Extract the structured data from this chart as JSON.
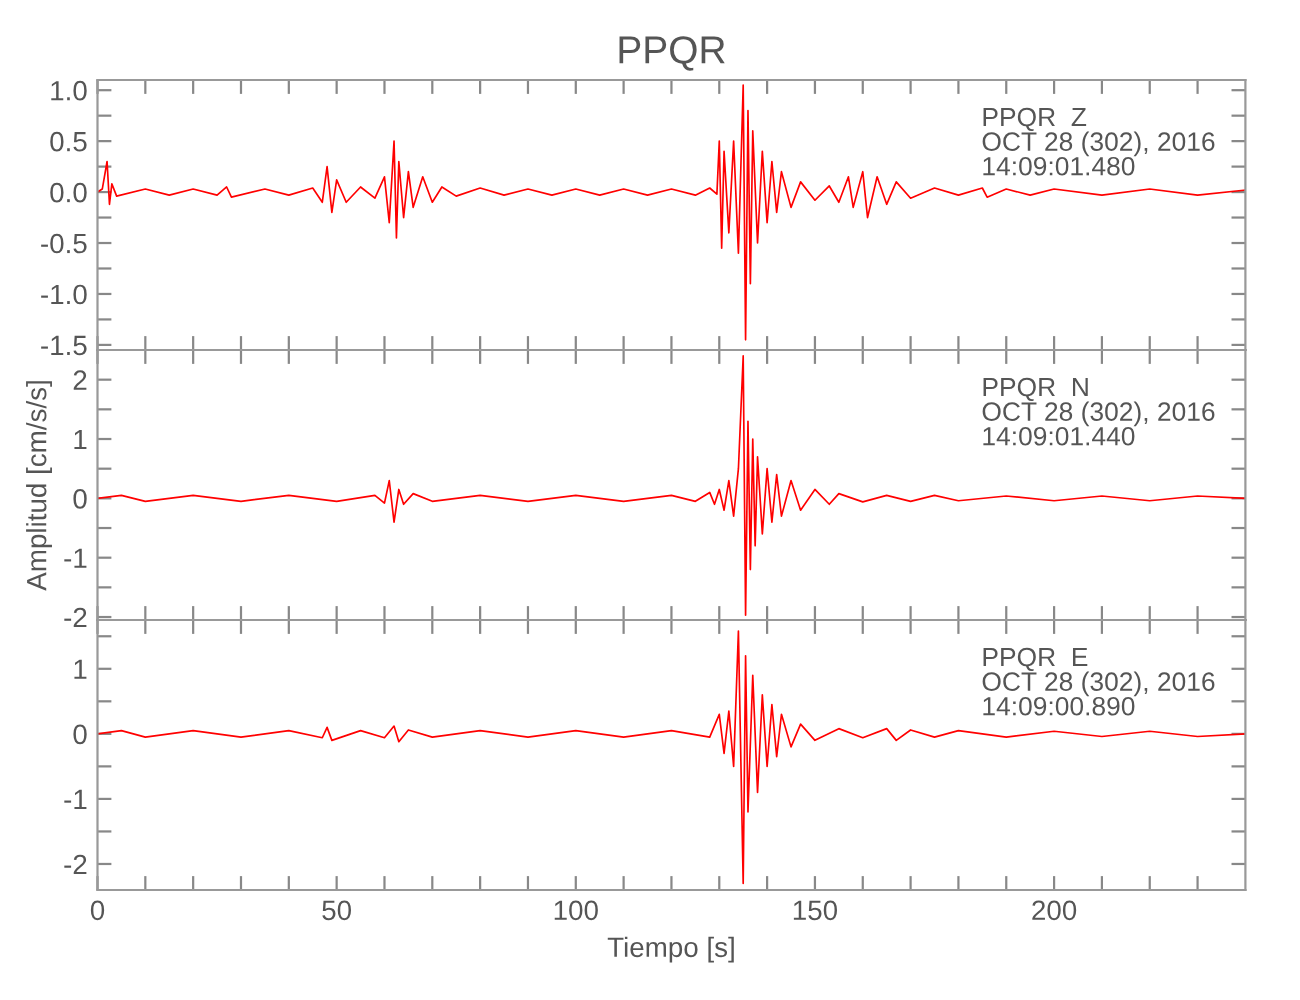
{
  "chart_data": [
    {
      "type": "line",
      "title": "PPQR",
      "annotations": [
        "PPQR  Z\nOCT 28 (302), 2016\n14:09:01.480"
      ],
      "x": [
        0,
        1,
        2,
        2.5,
        3,
        4,
        10,
        15,
        20,
        25,
        27,
        28,
        35,
        40,
        45,
        47,
        48,
        49,
        50,
        52,
        55,
        58,
        60,
        61,
        62,
        62.5,
        63,
        64,
        65,
        66,
        68,
        70,
        72,
        75,
        80,
        85,
        90,
        95,
        100,
        105,
        110,
        115,
        120,
        125,
        128,
        129.5,
        130,
        130.5,
        131,
        132,
        133,
        134,
        135,
        135.5,
        136,
        136.5,
        137,
        138,
        139,
        140,
        141,
        142,
        143,
        145,
        147,
        150,
        153,
        155,
        157,
        158,
        160,
        161,
        163,
        165,
        167,
        170,
        175,
        180,
        185,
        186,
        190,
        195,
        200,
        210,
        220,
        230,
        240
      ],
      "series": [
        {
          "color": "#ff0000",
          "values": [
            0,
            0.03,
            0.3,
            -0.12,
            0.08,
            -0.04,
            0.03,
            -0.03,
            0.03,
            -0.03,
            0.05,
            -0.05,
            0.03,
            -0.03,
            0.04,
            -0.1,
            0.25,
            -0.2,
            0.12,
            -0.1,
            0.05,
            -0.06,
            0.15,
            -0.3,
            0.5,
            -0.45,
            0.3,
            -0.25,
            0.2,
            -0.15,
            0.15,
            -0.1,
            0.05,
            -0.04,
            0.04,
            -0.03,
            0.03,
            -0.03,
            0.03,
            -0.03,
            0.03,
            -0.03,
            0.03,
            -0.03,
            0.04,
            -0.02,
            0.5,
            -0.55,
            0.4,
            -0.4,
            0.5,
            -0.6,
            1.05,
            -1.45,
            0.8,
            -0.9,
            0.6,
            -0.5,
            0.4,
            -0.3,
            0.3,
            -0.2,
            0.2,
            -0.15,
            0.1,
            -0.08,
            0.06,
            -0.1,
            0.15,
            -0.15,
            0.2,
            -0.25,
            0.15,
            -0.12,
            0.1,
            -0.06,
            0.04,
            -0.03,
            0.04,
            -0.05,
            0.03,
            -0.03,
            0.03,
            -0.03,
            0.03,
            -0.03,
            0.02
          ]
        }
      ],
      "xlim": [
        0,
        240
      ],
      "ylim": [
        -1.55,
        1.1
      ],
      "xticks": [
        0,
        {
          "value": 10,
          "label": null
        },
        {
          "value": 20,
          "label": null
        },
        {
          "value": 30,
          "label": null
        },
        {
          "value": 40,
          "label": null
        },
        50,
        {
          "value": 60,
          "label": null
        },
        {
          "value": 70,
          "label": null
        },
        {
          "value": 80,
          "label": null
        },
        {
          "value": 90,
          "label": null
        },
        100,
        {
          "value": 110,
          "label": null
        },
        {
          "value": 120,
          "label": null
        },
        {
          "value": 130,
          "label": null
        },
        {
          "value": 140,
          "label": null
        },
        150,
        {
          "value": 160,
          "label": null
        },
        {
          "value": 170,
          "label": null
        },
        {
          "value": 180,
          "label": null
        },
        {
          "value": 190,
          "label": null
        },
        200,
        {
          "value": 210,
          "label": null
        },
        {
          "value": 220,
          "label": null
        },
        {
          "value": 230,
          "label": null
        }
      ],
      "yticks": [
        -1.5,
        {
          "value": -1.25,
          "label": null
        },
        {
          "value": -1,
          "label": "-1.0"
        },
        {
          "value": -0.75,
          "label": null
        },
        -0.5,
        {
          "value": -0.25,
          "label": null
        },
        {
          "value": 0,
          "label": "0.0"
        },
        {
          "value": 0.25,
          "label": null
        },
        0.5,
        {
          "value": 0.75,
          "label": null
        },
        {
          "value": 1,
          "label": "1.0"
        }
      ],
      "tick_labels": "y"
    },
    {
      "type": "line",
      "ylabel": "Amplitud [cm/s/s]",
      "annotations": [
        "PPQR  N\nOCT 28 (302), 2016\n14:09:01.440"
      ],
      "x": [
        0,
        5,
        10,
        20,
        30,
        40,
        50,
        58,
        60,
        61,
        62,
        63,
        64,
        66,
        70,
        80,
        90,
        100,
        110,
        120,
        125,
        128,
        129,
        130,
        131,
        132,
        133,
        134,
        135,
        135.5,
        136,
        136.5,
        137,
        137.5,
        138,
        139,
        140,
        141,
        142,
        143,
        145,
        147,
        150,
        153,
        155,
        160,
        165,
        170,
        175,
        180,
        190,
        200,
        210,
        220,
        230,
        240
      ],
      "series": [
        {
          "color": "#ff0000",
          "values": [
            0,
            0.05,
            -0.05,
            0.05,
            -0.05,
            0.05,
            -0.05,
            0.05,
            -0.08,
            0.3,
            -0.4,
            0.15,
            -0.1,
            0.08,
            -0.05,
            0.05,
            -0.05,
            0.05,
            -0.05,
            0.05,
            -0.05,
            0.1,
            -0.1,
            0.15,
            -0.2,
            0.3,
            -0.3,
            0.5,
            2.4,
            -1.97,
            1.3,
            -1.2,
            1.0,
            -0.8,
            0.7,
            -0.6,
            0.5,
            -0.4,
            0.4,
            -0.3,
            0.3,
            -0.2,
            0.15,
            -0.1,
            0.08,
            -0.06,
            0.05,
            -0.05,
            0.05,
            -0.04,
            0.04,
            -0.04,
            0.04,
            -0.04,
            0.04,
            0
          ]
        }
      ],
      "xlim": [
        0,
        240
      ],
      "ylim": [
        -2.05,
        2.5
      ],
      "xticks": [
        0,
        {
          "value": 10,
          "label": null
        },
        {
          "value": 20,
          "label": null
        },
        {
          "value": 30,
          "label": null
        },
        {
          "value": 40,
          "label": null
        },
        50,
        {
          "value": 60,
          "label": null
        },
        {
          "value": 70,
          "label": null
        },
        {
          "value": 80,
          "label": null
        },
        {
          "value": 90,
          "label": null
        },
        100,
        {
          "value": 110,
          "label": null
        },
        {
          "value": 120,
          "label": null
        },
        {
          "value": 130,
          "label": null
        },
        {
          "value": 140,
          "label": null
        },
        150,
        {
          "value": 160,
          "label": null
        },
        {
          "value": 170,
          "label": null
        },
        {
          "value": 180,
          "label": null
        },
        {
          "value": 190,
          "label": null
        },
        200,
        {
          "value": 210,
          "label": null
        },
        {
          "value": 220,
          "label": null
        },
        {
          "value": 230,
          "label": null
        }
      ],
      "yticks": [
        -2,
        {
          "value": -1.5,
          "label": null
        },
        -1,
        {
          "value": -0.5,
          "label": null
        },
        0,
        {
          "value": 0.5,
          "label": null
        },
        1,
        {
          "value": 1.5,
          "label": null
        },
        2
      ],
      "tick_labels": "y"
    },
    {
      "type": "line",
      "xlabel": "Tiempo [s]",
      "annotations": [
        "PPQR  E\nOCT 28 (302), 2016\n14:09:00.890"
      ],
      "x": [
        0,
        5,
        10,
        20,
        30,
        40,
        47,
        48,
        49,
        55,
        60,
        62,
        63,
        65,
        70,
        80,
        90,
        100,
        110,
        120,
        128,
        130,
        131,
        132,
        133,
        134,
        135,
        135.5,
        136,
        137,
        138,
        139,
        140,
        141,
        142,
        143,
        145,
        147,
        150,
        155,
        160,
        165,
        167,
        170,
        175,
        180,
        190,
        200,
        210,
        220,
        230,
        240
      ],
      "series": [
        {
          "color": "#ff0000",
          "values": [
            0,
            0.05,
            -0.05,
            0.05,
            -0.05,
            0.05,
            -0.06,
            0.1,
            -0.1,
            0.05,
            -0.06,
            0.12,
            -0.12,
            0.06,
            -0.05,
            0.05,
            -0.05,
            0.05,
            -0.05,
            0.05,
            -0.05,
            0.3,
            -0.3,
            0.35,
            -0.5,
            1.58,
            -2.3,
            1.2,
            -1.2,
            0.9,
            -0.9,
            0.6,
            -0.5,
            0.45,
            -0.35,
            0.3,
            -0.2,
            0.15,
            -0.1,
            0.08,
            -0.06,
            0.08,
            -0.1,
            0.06,
            -0.05,
            0.05,
            -0.05,
            0.04,
            -0.04,
            0.04,
            -0.04,
            0
          ]
        }
      ],
      "xlim": [
        0,
        240
      ],
      "ylim": [
        -2.4,
        1.75
      ],
      "xticks": [
        0,
        {
          "value": 10,
          "label": null
        },
        {
          "value": 20,
          "label": null
        },
        {
          "value": 30,
          "label": null
        },
        {
          "value": 40,
          "label": null
        },
        50,
        {
          "value": 60,
          "label": null
        },
        {
          "value": 70,
          "label": null
        },
        {
          "value": 80,
          "label": null
        },
        {
          "value": 90,
          "label": null
        },
        100,
        {
          "value": 110,
          "label": null
        },
        {
          "value": 120,
          "label": null
        },
        {
          "value": 130,
          "label": null
        },
        {
          "value": 140,
          "label": null
        },
        150,
        {
          "value": 160,
          "label": null
        },
        {
          "value": 170,
          "label": null
        },
        {
          "value": 180,
          "label": null
        },
        {
          "value": 190,
          "label": null
        },
        200,
        {
          "value": 210,
          "label": null
        },
        {
          "value": 220,
          "label": null
        },
        {
          "value": 230,
          "label": null
        }
      ],
      "yticks": [
        -2,
        {
          "value": -1.5,
          "label": null
        },
        -1,
        {
          "value": -0.5,
          "label": null
        },
        0,
        {
          "value": 0.5,
          "label": null
        },
        1,
        {
          "value": 1.5,
          "label": null
        }
      ]
    }
  ]
}
